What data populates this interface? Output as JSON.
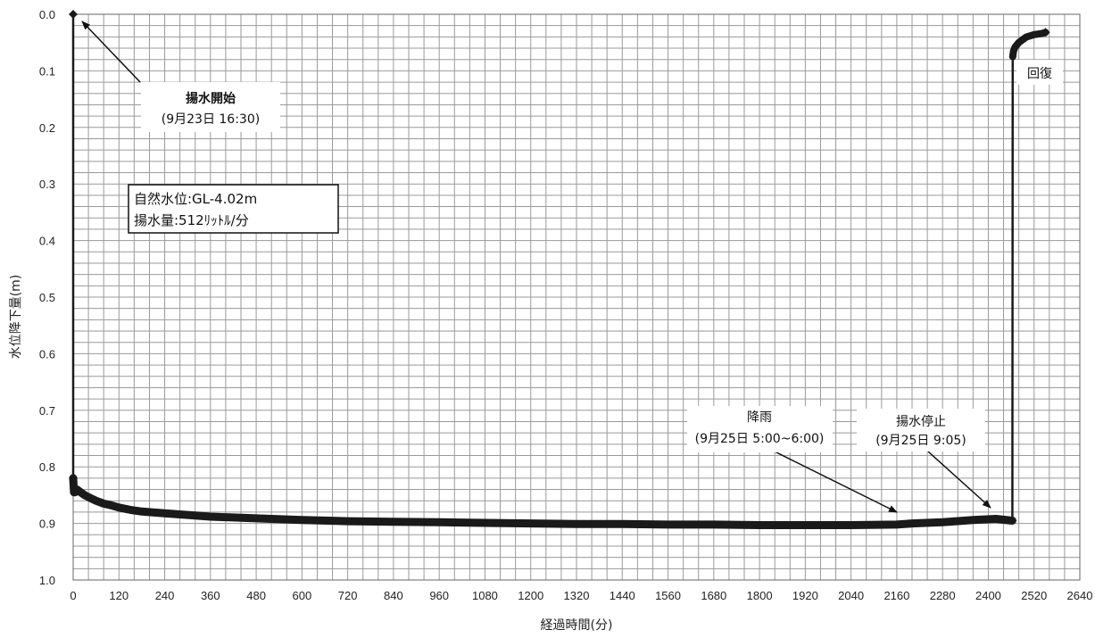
{
  "chart_data": {
    "type": "line",
    "xlabel": "経過時間(分)",
    "ylabel": "水位降下量(m)",
    "xlim": [
      0,
      2640
    ],
    "ylim": [
      0.0,
      1.0
    ],
    "y_inverted": true,
    "grid": true,
    "x_ticks": [
      "0",
      "120",
      "240",
      "360",
      "480",
      "600",
      "720",
      "840",
      "960",
      "1080",
      "1200",
      "1320",
      "1440",
      "1560",
      "1680",
      "1800",
      "1920",
      "2040",
      "2160",
      "2280",
      "2400",
      "2520",
      "2640"
    ],
    "y_ticks": [
      "0.0",
      "0.1",
      "0.2",
      "0.3",
      "0.4",
      "0.5",
      "0.6",
      "0.7",
      "0.8",
      "0.9",
      "1.0"
    ],
    "series": [
      {
        "color": "#1a1a1a",
        "x": [
          0,
          0,
          2,
          5,
          10,
          20,
          30,
          45,
          60,
          80,
          100,
          120,
          150,
          180,
          240,
          300,
          360,
          480,
          600,
          720,
          840,
          960,
          1080,
          1200,
          1320,
          1440,
          1560,
          1680,
          1800,
          1920,
          2040,
          2160,
          2200,
          2280,
          2360,
          2420,
          2460,
          2463,
          2464,
          2466,
          2470,
          2480,
          2490,
          2500,
          2520,
          2540,
          2550
        ],
        "y": [
          0.0,
          0.82,
          0.845,
          0.845,
          0.84,
          0.845,
          0.85,
          0.855,
          0.86,
          0.865,
          0.868,
          0.872,
          0.876,
          0.879,
          0.882,
          0.885,
          0.888,
          0.891,
          0.894,
          0.896,
          0.897,
          0.898,
          0.899,
          0.9,
          0.901,
          0.901,
          0.902,
          0.902,
          0.903,
          0.903,
          0.903,
          0.902,
          0.9,
          0.898,
          0.894,
          0.892,
          0.895,
          0.895,
          0.075,
          0.065,
          0.058,
          0.05,
          0.045,
          0.04,
          0.036,
          0.034,
          0.032
        ]
      }
    ],
    "annotations": [
      {
        "lines": [
          "揚水開始",
          "(9月23日 16:30)"
        ],
        "x": 0,
        "y": 0.0
      },
      {
        "lines": [
          "降雨",
          "(9月25日 5:00~6:00)"
        ],
        "x": 2190,
        "y": 0.9
      },
      {
        "lines": [
          "揚水停止",
          "(9月25日 9:05)"
        ],
        "x": 2460,
        "y": 0.88
      },
      {
        "lines": [
          "回復"
        ]
      }
    ],
    "info_box": [
      "自然水位:GL-4.02m",
      "揚水量:512ﾘｯﾄﾙ/分"
    ]
  }
}
